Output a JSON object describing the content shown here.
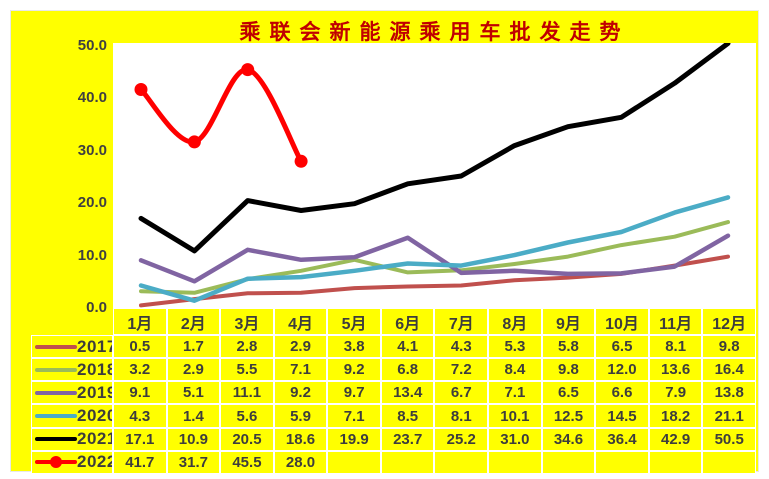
{
  "chart_data": {
    "type": "line",
    "title": "乘联会新能源乘用车批发走势",
    "categories": [
      "1月",
      "2月",
      "3月",
      "4月",
      "5月",
      "6月",
      "7月",
      "8月",
      "9月",
      "10月",
      "11月",
      "12月"
    ],
    "series": [
      {
        "name": "2017",
        "color": "#C0504D",
        "line_width": 4,
        "marker": false,
        "smooth": false,
        "values": [
          0.5,
          1.7,
          2.8,
          2.9,
          3.8,
          4.1,
          4.3,
          5.3,
          5.8,
          6.5,
          8.1,
          9.8
        ]
      },
      {
        "name": "2018",
        "color": "#9BBB59",
        "line_width": 4,
        "marker": false,
        "smooth": false,
        "values": [
          3.2,
          2.9,
          5.5,
          7.1,
          9.2,
          6.8,
          7.2,
          8.4,
          9.8,
          12.0,
          13.6,
          16.4
        ]
      },
      {
        "name": "2019",
        "color": "#8064A2",
        "line_width": 4.5,
        "marker": false,
        "smooth": false,
        "values": [
          9.1,
          5.1,
          11.1,
          9.2,
          9.7,
          13.4,
          6.7,
          7.1,
          6.5,
          6.6,
          7.9,
          13.8
        ]
      },
      {
        "name": "2020",
        "color": "#4BACC6",
        "line_width": 4.5,
        "marker": false,
        "smooth": false,
        "values": [
          4.3,
          1.4,
          5.6,
          5.9,
          7.1,
          8.5,
          8.1,
          10.1,
          12.5,
          14.5,
          18.2,
          21.1
        ]
      },
      {
        "name": "2021",
        "color": "#000000",
        "line_width": 5,
        "marker": false,
        "smooth": false,
        "values": [
          17.1,
          10.9,
          20.5,
          18.6,
          19.9,
          23.7,
          25.2,
          31.0,
          34.6,
          36.4,
          42.9,
          50.5
        ]
      },
      {
        "name": "2022",
        "color": "#FF0000",
        "line_width": 5,
        "marker": true,
        "smooth": true,
        "values": [
          41.7,
          31.7,
          45.5,
          28.0
        ]
      }
    ],
    "xlabel": "",
    "ylabel": "",
    "ylim": [
      0,
      50
    ],
    "y_ticks": [
      "0.0",
      "10.0",
      "20.0",
      "30.0",
      "40.0",
      "50.0"
    ],
    "y_tick_step": 10,
    "grid": false,
    "legend_position": "table-row-headers",
    "colors": {
      "canvas_background": "#FFFF00",
      "plot_background": "#FFFFFF",
      "title_color": "#C00000",
      "text_color": "#3D3D3D",
      "axis_text_color": "#404040",
      "gridline_color": "#FFFFFF",
      "marker_fill": "#FF0000"
    }
  }
}
